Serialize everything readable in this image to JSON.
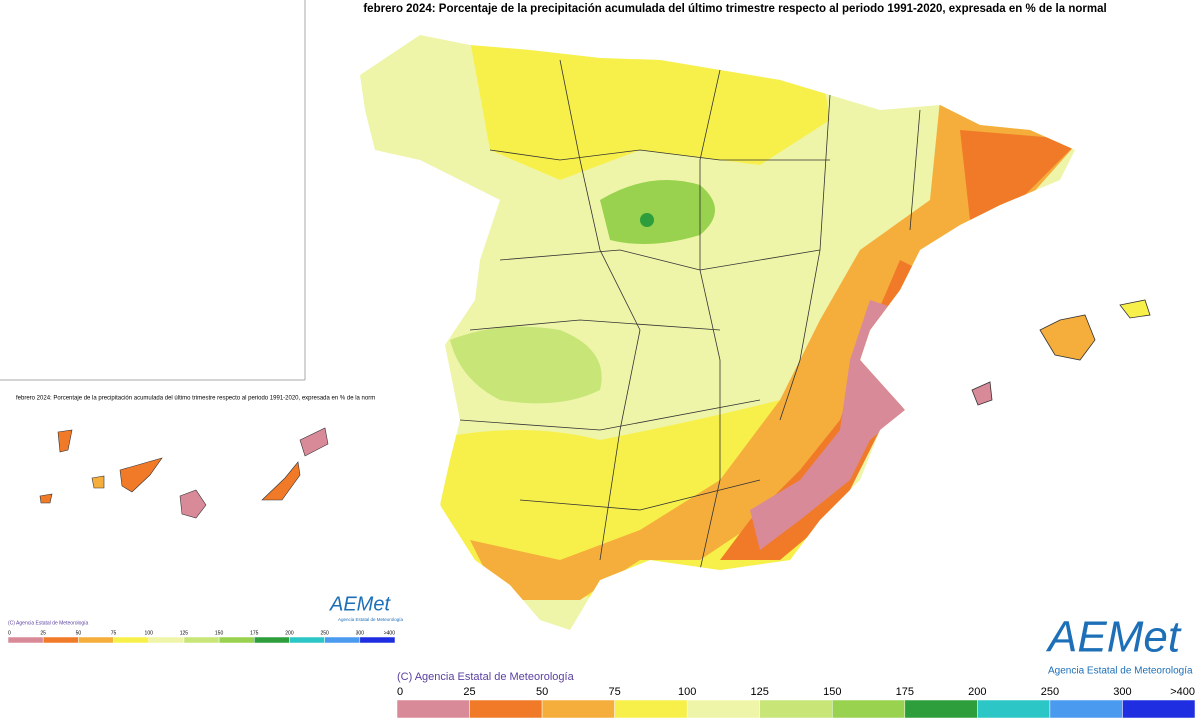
{
  "title": "febrero 2024: Porcentaje de la precipitación acumulada del último trimestre respecto al periodo 1991-2020, expresada en % de la normal",
  "inset": {
    "title": "febrero 2024: Porcentaje de la precipitación acumulada del último trimestre respecto al periodo 1991-2020, expresada en % de la norm"
  },
  "logo": {
    "name": "AEMet",
    "subtitle": "Agencia Estatal de Meteorología"
  },
  "copyright": "(C) Agencia Estatal de Meteorología",
  "legend": {
    "ticks": [
      0,
      25,
      50,
      75,
      100,
      125,
      150,
      175,
      200,
      250,
      300,
      {
        "value": 400,
        "label": ">400"
      }
    ],
    "colors": [
      "#d98a98",
      "#f07a28",
      "#f5ae3c",
      "#f8f04a",
      "#eef5a8",
      "#c8e678",
      "#98d24e",
      "#2e9e3c",
      "#2cc6c6",
      "#4a9af0",
      "#1e2ee0"
    ]
  }
}
